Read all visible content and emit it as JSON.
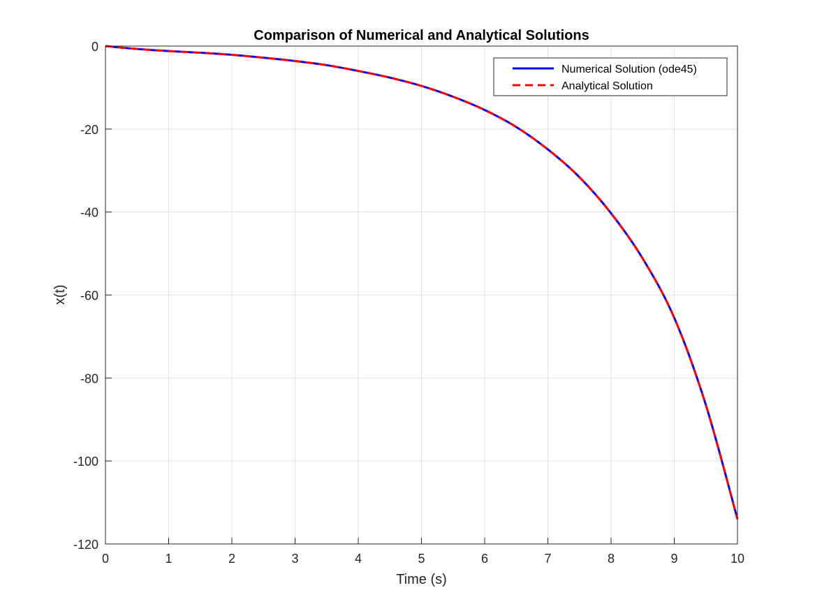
{
  "chart_data": {
    "type": "line",
    "title": "Comparison of Numerical and Analytical Solutions",
    "xlabel": "Time (s)",
    "ylabel": "x(t)",
    "xlim": [
      0,
      10
    ],
    "ylim": [
      -120,
      0
    ],
    "xticks": [
      0,
      1,
      2,
      3,
      4,
      5,
      6,
      7,
      8,
      9,
      10
    ],
    "yticks": [
      0,
      -20,
      -40,
      -60,
      -80,
      -100,
      -120
    ],
    "grid": true,
    "legend_position": "top-right",
    "x": [
      0,
      0.5,
      1,
      1.5,
      2,
      2.5,
      3,
      3.5,
      4,
      4.5,
      5,
      5.5,
      6,
      6.5,
      7,
      7.5,
      8,
      8.5,
      9,
      9.5,
      10
    ],
    "series": [
      {
        "name": "Numerical Solution (ode45)",
        "color": "#0000ff",
        "style": "solid",
        "values": [
          0,
          -0.7,
          -1.2,
          -1.6,
          -2.1,
          -2.8,
          -3.6,
          -4.6,
          -6.0,
          -7.6,
          -9.6,
          -12.2,
          -15.4,
          -19.5,
          -24.9,
          -31.6,
          -40.3,
          -51.2,
          -65.5,
          -86.5,
          -114.0
        ]
      },
      {
        "name": "Analytical Solution",
        "color": "#ff0000",
        "style": "dashed",
        "values": [
          0,
          -0.7,
          -1.2,
          -1.6,
          -2.1,
          -2.8,
          -3.6,
          -4.6,
          -6.0,
          -7.6,
          -9.6,
          -12.2,
          -15.4,
          -19.5,
          -24.9,
          -31.6,
          -40.3,
          -51.2,
          -65.5,
          -86.5,
          -114.0
        ]
      }
    ]
  }
}
